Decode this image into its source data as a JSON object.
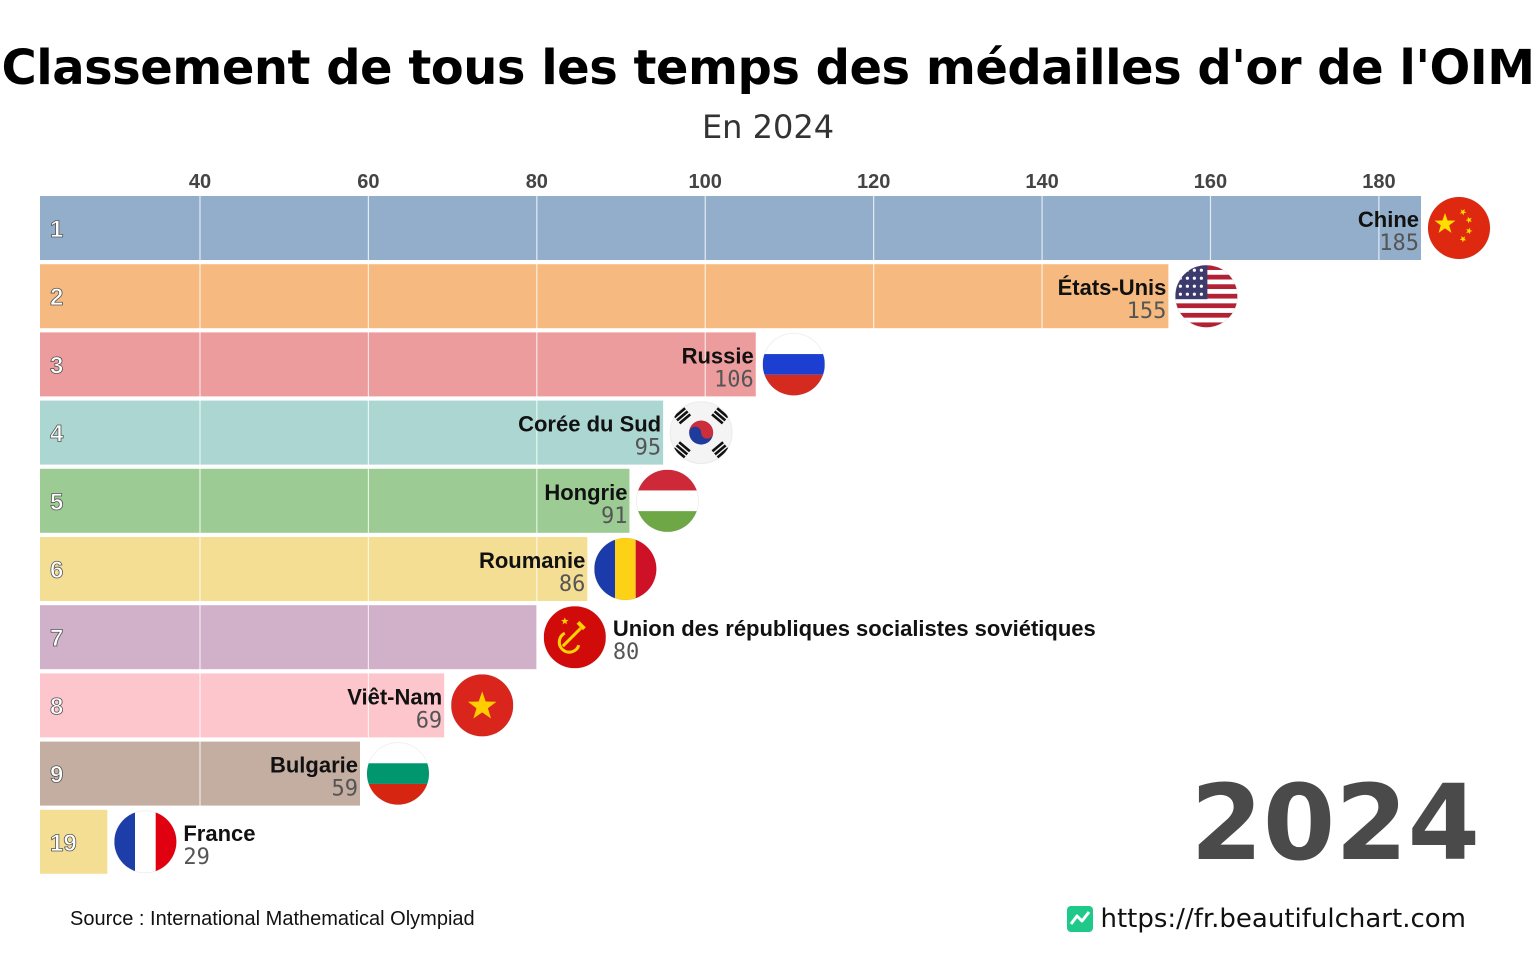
{
  "header": {
    "title": "Classement de tous les temps des médailles d'or de l'OIM",
    "subtitle": "En 2024"
  },
  "chart_data": {
    "type": "bar",
    "orientation": "horizontal",
    "title": "Classement de tous les temps des médailles d'or de l'OIM",
    "subtitle": "En 2024",
    "xlim": [
      21,
      185
    ],
    "xticks": [
      40,
      60,
      80,
      100,
      120,
      140,
      160,
      180
    ],
    "grid": true,
    "year": "2024",
    "categories": [
      "Chine",
      "États-Unis",
      "Russie",
      "Corée du Sud",
      "Hongrie",
      "Roumanie",
      "Union des républiques socialistes soviétiques",
      "Viêt-Nam",
      "Bulgarie",
      "France"
    ],
    "ranks": [
      "1",
      "2",
      "3",
      "4",
      "5",
      "6",
      "7",
      "8",
      "9",
      "19"
    ],
    "values": [
      185,
      155,
      106,
      95,
      91,
      86,
      80,
      69,
      59,
      29
    ],
    "colors": [
      "#93aecb",
      "#f6ba80",
      "#ec9c9c",
      "#acd6d2",
      "#9ccb94",
      "#f4de93",
      "#d1b0c9",
      "#fcc6cc",
      "#c4aea2",
      "#f4de93"
    ],
    "flags": [
      "china-flag",
      "usa-flag",
      "russia-flag",
      "south-korea-flag",
      "hungary-flag",
      "romania-flag",
      "ussr-flag",
      "vietnam-flag",
      "bulgaria-flag",
      "france-flag"
    ]
  },
  "footer": {
    "source": "Source : International Mathematical Olympiad",
    "site": "https://fr.beautifulchart.com"
  }
}
